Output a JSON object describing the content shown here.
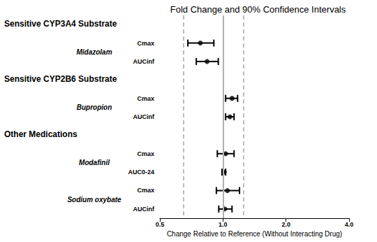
{
  "chart_data": {
    "type": "forest",
    "title": "Fold Change and 90% Confidence Intervals",
    "x_label": "Change Relative to Reference (Without Interacting Drug)",
    "log": "x",
    "xlim": [
      0.5,
      4.0
    ],
    "xticks": [
      0.5,
      {
        "value": 1,
        "label": "1.0"
      },
      {
        "value": 2,
        "label": "2.0"
      },
      {
        "value": 4,
        "label": "4.0"
      }
    ],
    "grid": false,
    "color": "#000000",
    "reference_line": 1.0,
    "limit_lines": [
      0.65,
      1.25
    ],
    "groups": [
      {
        "label": "Sensitive CYP3A4 Substrate",
        "drugs": [
          {
            "name": "Midazolam",
            "params": [
              {
                "name": "Cmax",
                "value": 0.78,
                "ci_low": 0.68,
                "ci_high": 0.905
              },
              {
                "name": "AUCinf",
                "value": 0.84,
                "ci_low": 0.746,
                "ci_high": 0.95
              }
            ]
          }
        ]
      },
      {
        "label": "Sensitive CYP2B6 Substrate",
        "drugs": [
          {
            "name": "Bupropion",
            "params": [
              {
                "name": "Cmax",
                "value": 1.105,
                "ci_low": 1.03,
                "ci_high": 1.175
              },
              {
                "name": "AUCinf",
                "value": 1.08,
                "ci_low": 1.03,
                "ci_high": 1.13
              }
            ]
          }
        ]
      },
      {
        "label": "Other Medications",
        "drugs": [
          {
            "name": "Modafinil",
            "params": [
              {
                "name": "Cmax",
                "value": 1.03,
                "ci_low": 0.94,
                "ci_high": 1.13
              },
              {
                "name": "AUC0-24",
                "value": 1.015,
                "ci_low": 0.99,
                "ci_high": 1.03
              }
            ]
          },
          {
            "name": "Sodium oxybate",
            "params": [
              {
                "name": "Cmax",
                "value": 1.05,
                "ci_low": 0.93,
                "ci_high": 1.2
              },
              {
                "name": "AUCinf",
                "value": 1.02,
                "ci_low": 0.955,
                "ci_high": 1.105
              }
            ]
          }
        ]
      }
    ]
  }
}
